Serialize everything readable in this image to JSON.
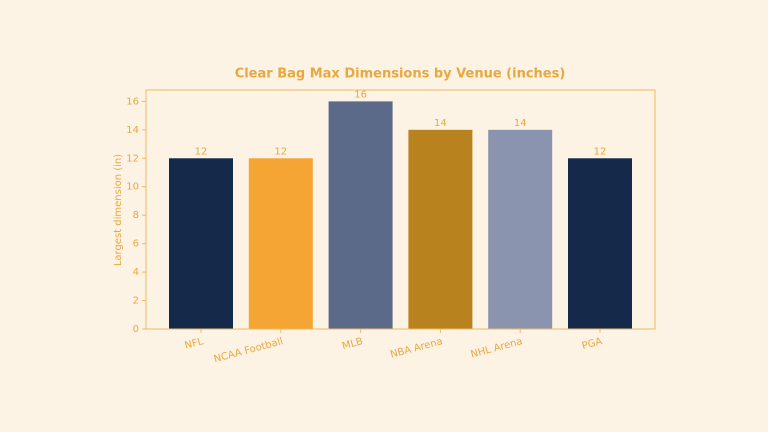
{
  "chart_data": {
    "type": "bar",
    "title": "Clear Bag Max Dimensions by Venue (inches)",
    "y_label": "Largest dimension (in)",
    "categories": [
      "NFL",
      "NCAA Football",
      "MLB",
      "NBA Arena",
      "NHL Arena",
      "PGA"
    ],
    "values": [
      12,
      12,
      16,
      14,
      14,
      12
    ],
    "colors": [
      "#15294b",
      "#f4a533",
      "#5b6a89",
      "#b8821f",
      "#8a94ae",
      "#15294b"
    ],
    "ylim": [
      0,
      16.8
    ],
    "yticks": [
      0,
      2,
      4,
      6,
      8,
      10,
      12,
      14,
      16
    ],
    "grid": false
  }
}
